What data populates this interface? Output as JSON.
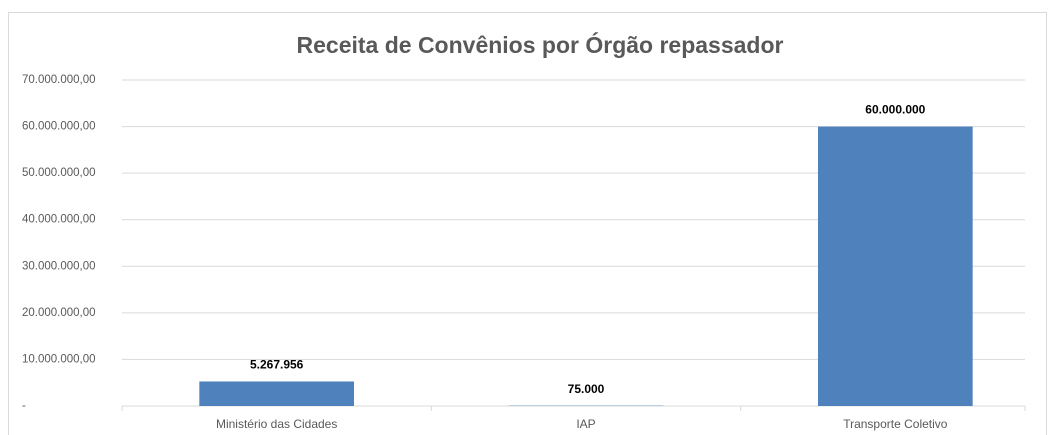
{
  "chart_data": {
    "type": "bar",
    "title": "Receita de Convênios por Órgão repassador",
    "categories": [
      "Ministério das Cidades",
      "IAP",
      "Transporte Coletivo"
    ],
    "values": [
      5267956,
      75000,
      60000000
    ],
    "value_labels": [
      "5.267.956",
      "75.000",
      "60.000.000"
    ],
    "color": "#4f81bd",
    "ylim": [
      0,
      70000000
    ],
    "yticks": [
      {
        "value": 0,
        "label": "-"
      },
      {
        "value": 10000000,
        "label": "10.000.000,00"
      },
      {
        "value": 20000000,
        "label": "20.000.000,00"
      },
      {
        "value": 30000000,
        "label": "30.000.000,00"
      },
      {
        "value": 40000000,
        "label": "40.000.000,00"
      },
      {
        "value": 50000000,
        "label": "50.000.000,00"
      },
      {
        "value": 60000000,
        "label": "60.000.000,00"
      },
      {
        "value": 70000000,
        "label": "70.000.000,00"
      }
    ],
    "grid": true
  }
}
